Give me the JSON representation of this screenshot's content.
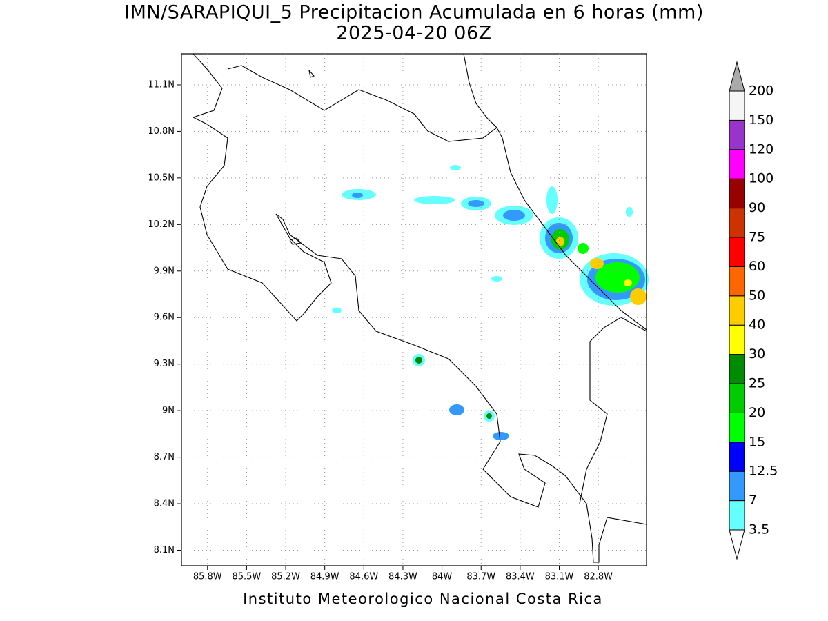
{
  "title": "IMN/SARAPIQUI_5 Precipitacion Acumulada en 6 horas (mm)",
  "subtitle": "2025-04-20 06Z",
  "footer": "Instituto Meteorologico Nacional Costa Rica",
  "map": {
    "xlim": [
      -86.0,
      -82.43
    ],
    "ylim": [
      8.0,
      11.3
    ],
    "grid": true,
    "xticks": [
      {
        "value": -85.8,
        "label": "85.8W"
      },
      {
        "value": -85.5,
        "label": "85.5W"
      },
      {
        "value": -85.2,
        "label": "85.2W"
      },
      {
        "value": -84.9,
        "label": "84.9W"
      },
      {
        "value": -84.6,
        "label": "84.6W"
      },
      {
        "value": -84.3,
        "label": "84.3W"
      },
      {
        "value": -84.0,
        "label": "84W"
      },
      {
        "value": -83.7,
        "label": "83.7W"
      },
      {
        "value": -83.4,
        "label": "83.4W"
      },
      {
        "value": -83.1,
        "label": "83.1W"
      },
      {
        "value": -82.8,
        "label": "82.8W"
      }
    ],
    "yticks": [
      {
        "value": 11.1,
        "label": "11.1N"
      },
      {
        "value": 10.8,
        "label": "10.8N"
      },
      {
        "value": 10.5,
        "label": "10.5N"
      },
      {
        "value": 10.2,
        "label": "10.2N"
      },
      {
        "value": 9.9,
        "label": "9.9N"
      },
      {
        "value": 9.6,
        "label": "9.6N"
      },
      {
        "value": 9.3,
        "label": "9.3N"
      },
      {
        "value": 9.0,
        "label": "9N"
      },
      {
        "value": 8.7,
        "label": "8.7N"
      },
      {
        "value": 8.4,
        "label": "8.4N"
      },
      {
        "value": 8.1,
        "label": "8.1N"
      }
    ]
  },
  "colorbar": {
    "levels": [
      3.5,
      7,
      12.5,
      15,
      20,
      25,
      30,
      40,
      50,
      60,
      75,
      90,
      100,
      120,
      150,
      200
    ],
    "colors": [
      "#ffffff",
      "#66ffff",
      "#3399ff",
      "#0000ff",
      "#00ff00",
      "#00cc00",
      "#008c00",
      "#ffff00",
      "#ffcc00",
      "#ff6600",
      "#ff0000",
      "#cc3300",
      "#990000",
      "#ff00ff",
      "#9933cc",
      "#f5f5f5",
      "#aaaaaa"
    ]
  }
}
